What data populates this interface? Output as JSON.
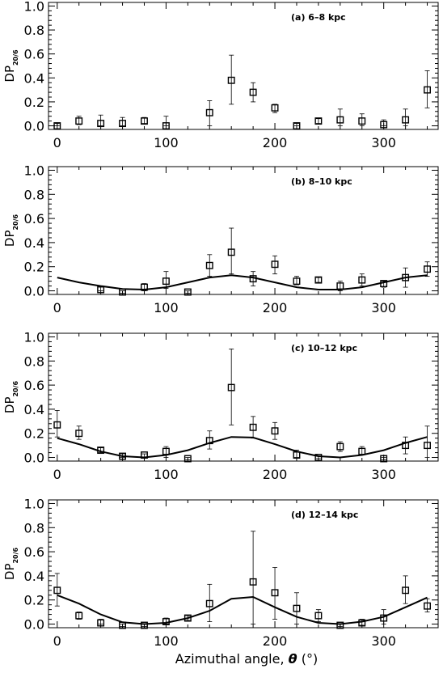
{
  "figure": {
    "x_axis_label": "Azimuthal angle, ",
    "x_axis_symbol": "θ",
    "x_axis_unit": " (°)",
    "y_axis_label": "DP",
    "y_axis_subscript": "20/6"
  },
  "chart_data": [
    {
      "type": "scatter",
      "label": "(a) 6–8 kpc",
      "xlabel": "",
      "ylabel": "DP20/6",
      "xlim": [
        -8,
        350
      ],
      "ylim": [
        -0.03,
        1.03
      ],
      "x_ticks": [
        0,
        100,
        200,
        300
      ],
      "y_ticks": [
        0.0,
        0.2,
        0.4,
        0.6,
        0.8,
        1.0
      ],
      "x_tick_labels": [
        "0",
        "100",
        "200",
        "300"
      ],
      "y_tick_labels": [
        "0.0",
        "0.2",
        "0.4",
        "0.6",
        "0.8",
        "1.0"
      ],
      "points": [
        {
          "x": 0,
          "y": 0.0,
          "lo": 0.0,
          "hi": 0.02
        },
        {
          "x": 20,
          "y": 0.04,
          "lo": 0.01,
          "hi": 0.08
        },
        {
          "x": 40,
          "y": 0.02,
          "lo": 0.0,
          "hi": 0.09
        },
        {
          "x": 60,
          "y": 0.02,
          "lo": 0.0,
          "hi": 0.07
        },
        {
          "x": 80,
          "y": 0.04,
          "lo": 0.02,
          "hi": 0.07
        },
        {
          "x": 100,
          "y": 0.0,
          "lo": 0.0,
          "hi": 0.08
        },
        {
          "x": 140,
          "y": 0.11,
          "lo": 0.0,
          "hi": 0.21
        },
        {
          "x": 160,
          "y": 0.38,
          "lo": 0.18,
          "hi": 0.59
        },
        {
          "x": 180,
          "y": 0.28,
          "lo": 0.2,
          "hi": 0.36
        },
        {
          "x": 200,
          "y": 0.15,
          "lo": 0.11,
          "hi": 0.18
        },
        {
          "x": 220,
          "y": 0.0,
          "lo": 0.0,
          "hi": 0.02
        },
        {
          "x": 240,
          "y": 0.04,
          "lo": 0.02,
          "hi": 0.06
        },
        {
          "x": 260,
          "y": 0.05,
          "lo": 0.0,
          "hi": 0.14
        },
        {
          "x": 280,
          "y": 0.04,
          "lo": 0.0,
          "hi": 0.1
        },
        {
          "x": 300,
          "y": 0.01,
          "lo": 0.0,
          "hi": 0.05
        },
        {
          "x": 320,
          "y": 0.05,
          "lo": 0.0,
          "hi": 0.14
        },
        {
          "x": 340,
          "y": 0.3,
          "lo": 0.15,
          "hi": 0.46
        }
      ],
      "model_curve": []
    },
    {
      "type": "scatter",
      "label": "(b) 8–10 kpc",
      "xlabel": "",
      "ylabel": "DP20/6",
      "xlim": [
        -8,
        350
      ],
      "ylim": [
        -0.03,
        1.03
      ],
      "x_ticks": [
        0,
        100,
        200,
        300
      ],
      "y_ticks": [
        0.0,
        0.2,
        0.4,
        0.6,
        0.8,
        1.0
      ],
      "x_tick_labels": [
        "0",
        "100",
        "200",
        "300"
      ],
      "y_tick_labels": [
        "0.0",
        "0.2",
        "0.4",
        "0.6",
        "0.8",
        "1.0"
      ],
      "points": [
        {
          "x": 40,
          "y": 0.01,
          "lo": 0.0,
          "hi": 0.03
        },
        {
          "x": 60,
          "y": -0.01,
          "lo": -0.02,
          "hi": 0.0
        },
        {
          "x": 80,
          "y": 0.03,
          "lo": 0.0,
          "hi": 0.06
        },
        {
          "x": 100,
          "y": 0.08,
          "lo": 0.02,
          "hi": 0.16
        },
        {
          "x": 120,
          "y": -0.01,
          "lo": -0.02,
          "hi": 0.0
        },
        {
          "x": 140,
          "y": 0.21,
          "lo": 0.12,
          "hi": 0.3
        },
        {
          "x": 160,
          "y": 0.32,
          "lo": 0.14,
          "hi": 0.52
        },
        {
          "x": 180,
          "y": 0.1,
          "lo": 0.04,
          "hi": 0.16
        },
        {
          "x": 200,
          "y": 0.22,
          "lo": 0.14,
          "hi": 0.29
        },
        {
          "x": 220,
          "y": 0.08,
          "lo": 0.05,
          "hi": 0.12
        },
        {
          "x": 240,
          "y": 0.09,
          "lo": 0.07,
          "hi": 0.11
        },
        {
          "x": 260,
          "y": 0.04,
          "lo": 0.0,
          "hi": 0.08
        },
        {
          "x": 280,
          "y": 0.09,
          "lo": 0.04,
          "hi": 0.14
        },
        {
          "x": 300,
          "y": 0.06,
          "lo": 0.03,
          "hi": 0.08
        },
        {
          "x": 320,
          "y": 0.11,
          "lo": 0.03,
          "hi": 0.19
        },
        {
          "x": 340,
          "y": 0.18,
          "lo": 0.12,
          "hi": 0.24
        }
      ],
      "model_curve": [
        {
          "x": 0,
          "y": 0.11
        },
        {
          "x": 20,
          "y": 0.07
        },
        {
          "x": 40,
          "y": 0.04
        },
        {
          "x": 60,
          "y": 0.015
        },
        {
          "x": 80,
          "y": 0.01
        },
        {
          "x": 100,
          "y": 0.03
        },
        {
          "x": 120,
          "y": 0.07
        },
        {
          "x": 140,
          "y": 0.11
        },
        {
          "x": 160,
          "y": 0.13
        },
        {
          "x": 180,
          "y": 0.11
        },
        {
          "x": 200,
          "y": 0.07
        },
        {
          "x": 220,
          "y": 0.03
        },
        {
          "x": 240,
          "y": 0.01
        },
        {
          "x": 260,
          "y": 0.01
        },
        {
          "x": 280,
          "y": 0.03
        },
        {
          "x": 300,
          "y": 0.07
        },
        {
          "x": 320,
          "y": 0.11
        },
        {
          "x": 340,
          "y": 0.13
        }
      ]
    },
    {
      "type": "scatter",
      "label": "(c) 10–12 kpc",
      "xlabel": "",
      "ylabel": "DP20/6",
      "xlim": [
        -8,
        350
      ],
      "ylim": [
        -0.03,
        1.03
      ],
      "x_ticks": [
        0,
        100,
        200,
        300
      ],
      "y_ticks": [
        0.0,
        0.2,
        0.4,
        0.6,
        0.8,
        1.0
      ],
      "x_tick_labels": [
        "0",
        "100",
        "200",
        "300"
      ],
      "y_tick_labels": [
        "0.0",
        "0.2",
        "0.4",
        "0.6",
        "0.8",
        "1.0"
      ],
      "points": [
        {
          "x": 0,
          "y": 0.27,
          "lo": 0.17,
          "hi": 0.39
        },
        {
          "x": 20,
          "y": 0.2,
          "lo": 0.15,
          "hi": 0.26
        },
        {
          "x": 40,
          "y": 0.06,
          "lo": 0.04,
          "hi": 0.08
        },
        {
          "x": 60,
          "y": 0.01,
          "lo": 0.0,
          "hi": 0.03
        },
        {
          "x": 80,
          "y": 0.02,
          "lo": 0.0,
          "hi": 0.03
        },
        {
          "x": 100,
          "y": 0.05,
          "lo": 0.0,
          "hi": 0.09
        },
        {
          "x": 120,
          "y": -0.01,
          "lo": -0.02,
          "hi": 0.0
        },
        {
          "x": 140,
          "y": 0.14,
          "lo": 0.07,
          "hi": 0.22
        },
        {
          "x": 160,
          "y": 0.58,
          "lo": 0.27,
          "hi": 0.9
        },
        {
          "x": 180,
          "y": 0.25,
          "lo": 0.16,
          "hi": 0.34
        },
        {
          "x": 200,
          "y": 0.22,
          "lo": 0.15,
          "hi": 0.29
        },
        {
          "x": 220,
          "y": 0.02,
          "lo": 0.0,
          "hi": 0.06
        },
        {
          "x": 240,
          "y": 0.0,
          "lo": -0.01,
          "hi": 0.01
        },
        {
          "x": 260,
          "y": 0.09,
          "lo": 0.05,
          "hi": 0.13
        },
        {
          "x": 280,
          "y": 0.05,
          "lo": 0.02,
          "hi": 0.09
        },
        {
          "x": 300,
          "y": -0.01,
          "lo": -0.02,
          "hi": 0.0
        },
        {
          "x": 320,
          "y": 0.1,
          "lo": 0.03,
          "hi": 0.17
        },
        {
          "x": 340,
          "y": 0.1,
          "lo": 0.0,
          "hi": 0.26
        }
      ],
      "model_curve": [
        {
          "x": 0,
          "y": 0.16
        },
        {
          "x": 20,
          "y": 0.11
        },
        {
          "x": 40,
          "y": 0.05
        },
        {
          "x": 60,
          "y": 0.01
        },
        {
          "x": 80,
          "y": 0.0
        },
        {
          "x": 100,
          "y": 0.02
        },
        {
          "x": 120,
          "y": 0.06
        },
        {
          "x": 140,
          "y": 0.12
        },
        {
          "x": 160,
          "y": 0.17
        },
        {
          "x": 180,
          "y": 0.165
        },
        {
          "x": 200,
          "y": 0.11
        },
        {
          "x": 220,
          "y": 0.05
        },
        {
          "x": 240,
          "y": 0.01
        },
        {
          "x": 260,
          "y": 0.0
        },
        {
          "x": 280,
          "y": 0.02
        },
        {
          "x": 300,
          "y": 0.06
        },
        {
          "x": 320,
          "y": 0.12
        },
        {
          "x": 340,
          "y": 0.17
        }
      ]
    },
    {
      "type": "scatter",
      "label": "(d) 12–14 kpc",
      "xlabel": "Azimuthal angle, θ (°)",
      "ylabel": "DP20/6",
      "xlim": [
        -8,
        350
      ],
      "ylim": [
        -0.03,
        1.03
      ],
      "x_ticks": [
        0,
        100,
        200,
        300
      ],
      "y_ticks": [
        0.0,
        0.2,
        0.4,
        0.6,
        0.8,
        1.0
      ],
      "x_tick_labels": [
        "0",
        "100",
        "200",
        "300"
      ],
      "y_tick_labels": [
        "0.0",
        "0.2",
        "0.4",
        "0.6",
        "0.8",
        "1.0"
      ],
      "points": [
        {
          "x": 0,
          "y": 0.28,
          "lo": 0.15,
          "hi": 0.42
        },
        {
          "x": 20,
          "y": 0.07,
          "lo": 0.04,
          "hi": 0.1
        },
        {
          "x": 40,
          "y": 0.01,
          "lo": 0.0,
          "hi": 0.04
        },
        {
          "x": 60,
          "y": -0.01,
          "lo": -0.02,
          "hi": 0.0
        },
        {
          "x": 80,
          "y": -0.01,
          "lo": -0.02,
          "hi": 0.0
        },
        {
          "x": 100,
          "y": 0.02,
          "lo": 0.0,
          "hi": 0.05
        },
        {
          "x": 120,
          "y": 0.05,
          "lo": 0.03,
          "hi": 0.07
        },
        {
          "x": 140,
          "y": 0.17,
          "lo": 0.02,
          "hi": 0.33
        },
        {
          "x": 180,
          "y": 0.35,
          "lo": 0.0,
          "hi": 0.77
        },
        {
          "x": 200,
          "y": 0.26,
          "lo": 0.04,
          "hi": 0.47
        },
        {
          "x": 220,
          "y": 0.13,
          "lo": 0.0,
          "hi": 0.26
        },
        {
          "x": 240,
          "y": 0.07,
          "lo": 0.02,
          "hi": 0.12
        },
        {
          "x": 260,
          "y": -0.01,
          "lo": -0.02,
          "hi": 0.0
        },
        {
          "x": 280,
          "y": 0.01,
          "lo": -0.01,
          "hi": 0.04
        },
        {
          "x": 300,
          "y": 0.05,
          "lo": 0.0,
          "hi": 0.12
        },
        {
          "x": 320,
          "y": 0.28,
          "lo": 0.17,
          "hi": 0.4
        },
        {
          "x": 340,
          "y": 0.15,
          "lo": 0.1,
          "hi": 0.21
        }
      ],
      "model_curve": [
        {
          "x": 0,
          "y": 0.24
        },
        {
          "x": 20,
          "y": 0.17
        },
        {
          "x": 40,
          "y": 0.08
        },
        {
          "x": 60,
          "y": 0.015
        },
        {
          "x": 80,
          "y": 0.0
        },
        {
          "x": 100,
          "y": 0.01
        },
        {
          "x": 120,
          "y": 0.05
        },
        {
          "x": 140,
          "y": 0.11
        },
        {
          "x": 160,
          "y": 0.21
        },
        {
          "x": 180,
          "y": 0.225
        },
        {
          "x": 200,
          "y": 0.14
        },
        {
          "x": 220,
          "y": 0.06
        },
        {
          "x": 240,
          "y": 0.01
        },
        {
          "x": 260,
          "y": 0.0
        },
        {
          "x": 280,
          "y": 0.02
        },
        {
          "x": 300,
          "y": 0.06
        },
        {
          "x": 320,
          "y": 0.14
        },
        {
          "x": 340,
          "y": 0.22
        }
      ]
    }
  ]
}
